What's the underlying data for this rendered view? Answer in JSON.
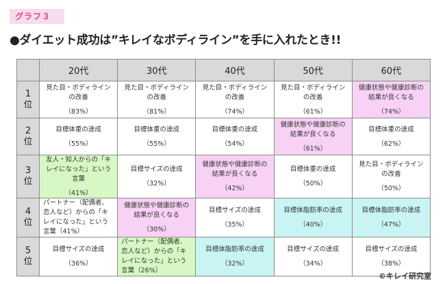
{
  "tag": "グラフ３",
  "title": "●ダイエット成功は”キレイなボディライン”を手に入れたとき!!",
  "columns": [
    "20代",
    "30代",
    "40代",
    "50代",
    "60代"
  ],
  "rows": [
    {
      "rank_num": "1",
      "rank_suffix": "位",
      "cells": [
        {
          "text": "見た目・ボディラインの改善",
          "pct": "（83%）",
          "highlight": ""
        },
        {
          "text": "見た目・ボディラインの改善",
          "pct": "（81%）",
          "highlight": ""
        },
        {
          "text": "見た目・ボディラインの改善",
          "pct": "（74%）",
          "highlight": ""
        },
        {
          "text": "見た目・ボディラインの改善",
          "pct": "（61%）",
          "highlight": ""
        },
        {
          "text": "健康状態や健康診断の結果が良くなる",
          "pct": "（74%）",
          "highlight": "pink"
        }
      ]
    },
    {
      "rank_num": "2",
      "rank_suffix": "位",
      "cells": [
        {
          "text": "目標体重の達成",
          "pct": "（55%）",
          "highlight": ""
        },
        {
          "text": "目標体重の達成",
          "pct": "（55%）",
          "highlight": ""
        },
        {
          "text": "目標体重の達成",
          "pct": "（54%）",
          "highlight": ""
        },
        {
          "text": "健康状態や健康診断の結果が良くなる",
          "pct": "（61%）",
          "highlight": "pink"
        },
        {
          "text": "目標体重の達成",
          "pct": "（62%）",
          "highlight": ""
        }
      ]
    },
    {
      "rank_num": "3",
      "rank_suffix": "位",
      "cells": [
        {
          "text": "友人・知人からの「キレイになった」という言葉",
          "pct": "（41%）",
          "highlight": "green"
        },
        {
          "text": "目標サイズの達成",
          "pct": "（32%）",
          "highlight": ""
        },
        {
          "text": "健康状態や健康診断の結果が良くなる",
          "pct": "（42%）",
          "highlight": "pink"
        },
        {
          "text": "目標体重の達成",
          "pct": "（50%）",
          "highlight": ""
        },
        {
          "text": "見た目・ボディラインの改善",
          "pct": "（50%）",
          "highlight": ""
        }
      ]
    },
    {
      "rank_num": "4",
      "rank_suffix": "位",
      "cells": [
        {
          "text": "パートナー（配偶者、恋人など）からの「キレイになった」という言葉（41%）",
          "pct": "",
          "highlight": ""
        },
        {
          "text": "健康状態や健康診断の結果が良くなる",
          "pct": "（30%）",
          "highlight": "pink"
        },
        {
          "text": "目標サイズの達成",
          "pct": "（35%）",
          "highlight": ""
        },
        {
          "text": "目標体脂肪率の達成",
          "pct": "（40%）",
          "highlight": "cyan"
        },
        {
          "text": "目標体脂肪率の達成",
          "pct": "（47%）",
          "highlight": "cyan"
        }
      ]
    },
    {
      "rank_num": "5",
      "rank_suffix": "位",
      "cells": [
        {
          "text": "目標サイズの達成",
          "pct": "（36%）",
          "highlight": ""
        },
        {
          "text": "パートナー（配偶者、恋人など）からの「キレイになった」という言葉（26%）",
          "pct": "",
          "highlight": "green"
        },
        {
          "text": "目標体脂肪率の達成",
          "pct": "（32%）",
          "highlight": "cyan"
        },
        {
          "text": "目標サイズの達成",
          "pct": "（34%）",
          "highlight": ""
        },
        {
          "text": "目標サイズの達成",
          "pct": "（38%）",
          "highlight": ""
        }
      ]
    }
  ],
  "credit": "©キレイ研究室",
  "colors": {
    "pink": "#f7d2f5",
    "green": "#d7f7c4",
    "cyan": "#c9f4f4",
    "header": "#d9d9d9",
    "tag_bg": "#f6dcef",
    "tag_text": "#e0418f"
  }
}
